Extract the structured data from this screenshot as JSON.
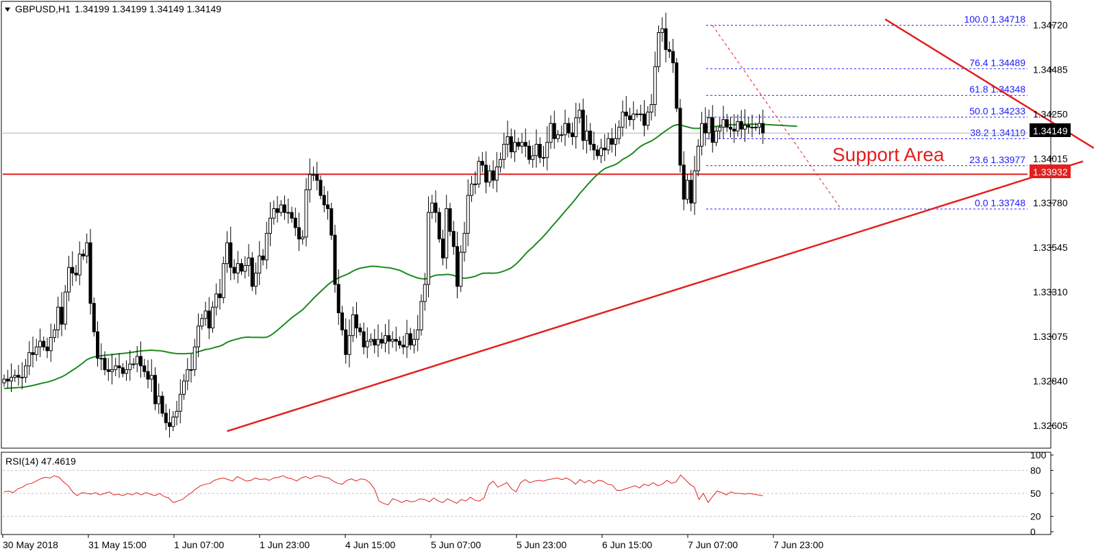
{
  "header": {
    "symbol": "GBPUSD,H1",
    "ohlc": "1.34199 1.34199 1.34149 1.34149"
  },
  "rsi_header": "RSI(14) 47.4619",
  "annotation": "Support Area",
  "price_tags": {
    "current": "1.34149",
    "support": "1.33932"
  },
  "colors": {
    "candle_up": "#ffffff",
    "candle_down": "#000000",
    "ma": "#1a8a1a",
    "trendlines": "#e31e1e",
    "fib": "#1a1aff",
    "rsi": "#e31e1e"
  },
  "chart_data": [
    {
      "type": "candlestick",
      "title": "GBPUSD,H1",
      "y_ticks": [
        "1.34720",
        "1.34485",
        "1.34250",
        "1.34015",
        "1.33780",
        "1.33545",
        "1.33310",
        "1.33075",
        "1.32840",
        "1.32605"
      ],
      "x_ticks": [
        "30 May 2018",
        "31 May 15:00",
        "1 Jun 07:00",
        "1 Jun 23:00",
        "4 Jun 15:00",
        "5 Jun 07:00",
        "5 Jun 23:00",
        "6 Jun 15:00",
        "7 Jun 07:00",
        "7 Jun 23:00"
      ],
      "ylim": [
        1.325,
        1.3483
      ],
      "current_price": 1.34149,
      "horizontal_support": 1.33932,
      "fibonacci": [
        {
          "level": "100.0",
          "price": 1.34718
        },
        {
          "level": "76.4",
          "price": 1.34489
        },
        {
          "level": "61.8",
          "price": 1.34348
        },
        {
          "level": "50.0",
          "price": 1.34233
        },
        {
          "level": "38.2",
          "price": 1.34119
        },
        {
          "level": "23.6",
          "price": 1.33977
        },
        {
          "level": "0.0",
          "price": 1.33748
        }
      ],
      "trendlines": [
        {
          "name": "rising support",
          "from": {
            "bar": 62,
            "price": 1.32575
          },
          "to": {
            "bar": 300,
            "price": 1.34
          }
        },
        {
          "name": "falling resistance",
          "from": {
            "bar": 245,
            "price": 1.3475
          },
          "to": {
            "bar": 303,
            "price": 1.3407
          }
        }
      ],
      "series": [
        {
          "type": "close",
          "values": [
            1.3285,
            1.3284,
            1.3286,
            1.3287,
            1.3286,
            1.3286,
            1.3292,
            1.3299,
            1.3298,
            1.3302,
            1.3305,
            1.3302,
            1.33,
            1.3307,
            1.3311,
            1.3323,
            1.3314,
            1.3331,
            1.3344,
            1.3341,
            1.334,
            1.3351,
            1.335,
            1.3357,
            1.3325,
            1.331,
            1.3296,
            1.3296,
            1.329,
            1.3289,
            1.329,
            1.3292,
            1.3291,
            1.3288,
            1.329,
            1.3293,
            1.3293,
            1.3297,
            1.3292,
            1.3289,
            1.3285,
            1.3287,
            1.3272,
            1.3276,
            1.3267,
            1.3262,
            1.326,
            1.3265,
            1.3268,
            1.3277,
            1.3284,
            1.329,
            1.329,
            1.3302,
            1.3313,
            1.3317,
            1.3321,
            1.3312,
            1.3323,
            1.333,
            1.3328,
            1.3346,
            1.3357,
            1.3344,
            1.3341,
            1.3346,
            1.3342,
            1.3345,
            1.3349,
            1.3334,
            1.3341,
            1.335,
            1.3348,
            1.3362,
            1.337,
            1.3375,
            1.3373,
            1.3377,
            1.3373,
            1.3373,
            1.337,
            1.3365,
            1.3359,
            1.336,
            1.3385,
            1.3393,
            1.3393,
            1.339,
            1.3382,
            1.3377,
            1.3375,
            1.3361,
            1.3335,
            1.332,
            1.3311,
            1.3298,
            1.3308,
            1.3319,
            1.3312,
            1.331,
            1.3302,
            1.3305,
            1.3306,
            1.3303,
            1.3306,
            1.3304,
            1.3308,
            1.3305,
            1.3306,
            1.3305,
            1.3303,
            1.3302,
            1.3309,
            1.3303,
            1.3306,
            1.3311,
            1.3326,
            1.3335,
            1.3373,
            1.3378,
            1.3373,
            1.3359,
            1.3349,
            1.3375,
            1.3363,
            1.3355,
            1.3334,
            1.3352,
            1.3362,
            1.3382,
            1.3388,
            1.3388,
            1.34,
            1.3398,
            1.3389,
            1.3395,
            1.339,
            1.3397,
            1.3401,
            1.3409,
            1.3413,
            1.3405,
            1.341,
            1.3408,
            1.341,
            1.3408,
            1.3401,
            1.3403,
            1.3409,
            1.3402,
            1.3402,
            1.341,
            1.342,
            1.3412,
            1.3414,
            1.3414,
            1.342,
            1.3415,
            1.3413,
            1.3423,
            1.3427,
            1.3411,
            1.3416,
            1.3409,
            1.3406,
            1.3403,
            1.3407,
            1.3406,
            1.3412,
            1.3409,
            1.3412,
            1.3418,
            1.3426,
            1.3424,
            1.3422,
            1.3425,
            1.3425,
            1.3425,
            1.3419,
            1.3426,
            1.343,
            1.345,
            1.3468,
            1.347,
            1.3459,
            1.3458,
            1.3452,
            1.3428,
            1.3398,
            1.338,
            1.339,
            1.3378,
            1.3395,
            1.3408,
            1.342,
            1.3415,
            1.3423,
            1.341,
            1.3416,
            1.3418,
            1.3422,
            1.3418,
            1.3417,
            1.3416,
            1.3421,
            1.3417,
            1.3419,
            1.3418,
            1.3418,
            1.3418,
            1.342,
            1.3415
          ]
        },
        {
          "type": "moving average",
          "values": "computed from close"
        }
      ]
    },
    {
      "type": "line",
      "title": "RSI(14) 47.4619",
      "y_ticks": [
        "100",
        "80",
        "50",
        "20",
        "0"
      ],
      "ylim": [
        0,
        100
      ],
      "series": [
        {
          "values": [
            52,
            53,
            51,
            56,
            58,
            62,
            63,
            66,
            69,
            71,
            70,
            73,
            71,
            65,
            60,
            52,
            47,
            51,
            50,
            49,
            51,
            48,
            50,
            52,
            48,
            49,
            47,
            50,
            48,
            51,
            48,
            51,
            49,
            47,
            50,
            46,
            44,
            38,
            40,
            42,
            47,
            51,
            56,
            60,
            62,
            63,
            67,
            69,
            70,
            68,
            66,
            72,
            69,
            66,
            67,
            70,
            68,
            69,
            67,
            70,
            71,
            73,
            70,
            69,
            66,
            70,
            72,
            69,
            72,
            73,
            71,
            70,
            66,
            63,
            62,
            67,
            69,
            66,
            69,
            68,
            64,
            56,
            40,
            37,
            35,
            43,
            41,
            38,
            41,
            39,
            40,
            43,
            42,
            39,
            44,
            40,
            38,
            43,
            40,
            37,
            42,
            40,
            45,
            41,
            40,
            44,
            61,
            66,
            58,
            61,
            64,
            56,
            52,
            64,
            68,
            64,
            66,
            67,
            66,
            68,
            69,
            70,
            68,
            70,
            67,
            62,
            68,
            64,
            67,
            63,
            67,
            66,
            62,
            61,
            54,
            54,
            56,
            58,
            60,
            57,
            62,
            60,
            64,
            60,
            62,
            67,
            63,
            65,
            74,
            68,
            62,
            58,
            42,
            50,
            38,
            46,
            53,
            51,
            48,
            52,
            50,
            50,
            49,
            50,
            49,
            48,
            47
          ]
        }
      ]
    }
  ]
}
